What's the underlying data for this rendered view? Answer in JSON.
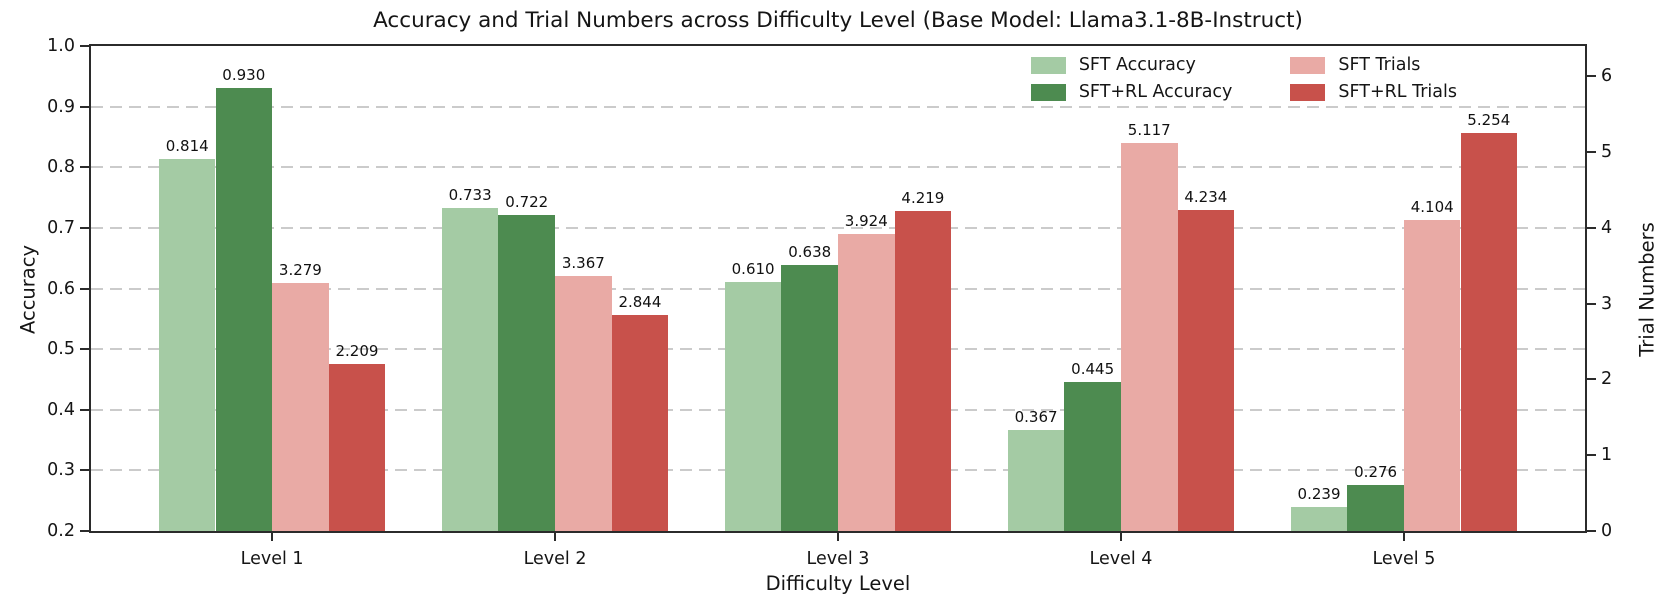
{
  "chart_data": {
    "type": "bar",
    "title": "Accuracy and Trial Numbers across Difficulty Level (Base Model: Llama3.1-8B-Instruct)",
    "xlabel": "Difficulty Level",
    "ylabel_left": "Accuracy",
    "ylabel_right": "Trial Numbers",
    "categories": [
      "Level 1",
      "Level 2",
      "Level 3",
      "Level 4",
      "Level 5"
    ],
    "series": [
      {
        "name": "SFT Accuracy",
        "axis": "left",
        "color": "#a4cba4",
        "values": [
          0.814,
          0.733,
          0.61,
          0.367,
          0.239
        ]
      },
      {
        "name": "SFT+RL Accuracy",
        "axis": "left",
        "color": "#4d8b50",
        "values": [
          0.93,
          0.722,
          0.638,
          0.445,
          0.276
        ]
      },
      {
        "name": "SFT Trials",
        "axis": "right",
        "color": "#e9aaa5",
        "values": [
          3.279,
          3.367,
          3.924,
          5.117,
          4.104
        ]
      },
      {
        "name": "SFT+RL Trials",
        "axis": "right",
        "color": "#c8514b",
        "values": [
          2.209,
          2.844,
          4.219,
          4.234,
          5.254
        ]
      }
    ],
    "left_axis": {
      "min": 0.2,
      "max": 1.0,
      "ticks": [
        "0.2",
        "0.3",
        "0.4",
        "0.5",
        "0.6",
        "0.7",
        "0.8",
        "0.9",
        "1.0"
      ]
    },
    "right_axis": {
      "min": 0,
      "max": 6.4,
      "ticks": [
        "0",
        "1",
        "2",
        "3",
        "4",
        "5",
        "6"
      ]
    },
    "value_label_decimals": 3,
    "legend_position": "upper right",
    "legend_order_note": "column-major: accuracies in col 1, trials in col 2",
    "grid": "horizontal dashed at left-axis ticks",
    "grid_color": "#cbcbcb"
  }
}
